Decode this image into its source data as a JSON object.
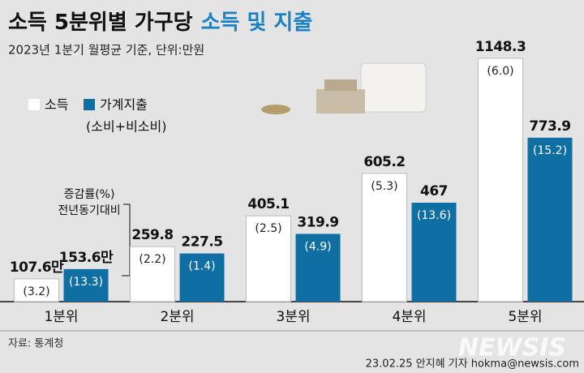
{
  "chart_data": {
    "type": "bar",
    "title": "소득 5분위별 가구당",
    "title_highlight": "소득 및 지출",
    "subtitle": "2023년 1분기 월평균 기준, 단위:만원",
    "annotation": [
      "증감률(%)",
      "전년동기대비"
    ],
    "legend_note": "(소비+비소비)",
    "categories": [
      "1분위",
      "2분위",
      "3분위",
      "4분위",
      "5분위"
    ],
    "series": [
      {
        "name": "소득",
        "color": "#ffffff",
        "values": [
          107.6,
          259.8,
          405.1,
          605.2,
          1148.3
        ],
        "value_labels": [
          "107.6만",
          "259.8",
          "405.1",
          "605.2",
          "1148.3"
        ],
        "growth": [
          3.2,
          2.2,
          2.5,
          5.3,
          6.0
        ],
        "growth_labels": [
          "(3.2)",
          "(2.2)",
          "(2.5)",
          "(5.3)",
          "(6.0)"
        ]
      },
      {
        "name": "가계지출",
        "color": "#0f6fa3",
        "values": [
          153.6,
          227.5,
          319.9,
          467,
          773.9
        ],
        "value_labels": [
          "153.6만",
          "227.5",
          "319.9",
          "467",
          "773.9"
        ],
        "growth": [
          13.3,
          1.4,
          4.9,
          13.6,
          15.2
        ],
        "growth_labels": [
          "(13.3)",
          "(1.4)",
          "(4.9)",
          "(13.6)",
          "(15.2)"
        ]
      }
    ],
    "source": "자료: 통계청",
    "credit": "23.02.25 안지혜 기자 hokma@newsis.com",
    "watermark": "NEWSIS"
  }
}
